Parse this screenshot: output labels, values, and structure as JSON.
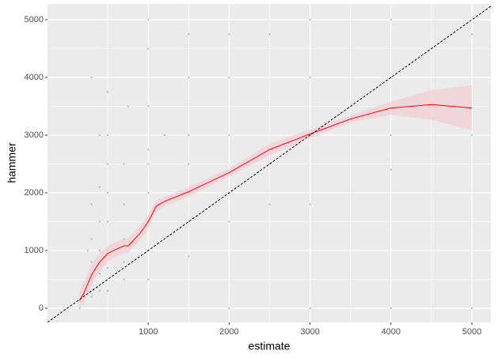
{
  "chart_data": {
    "type": "scatter",
    "x_label": "estimate",
    "y_label": "hammer",
    "xlim": [
      -245,
      5235
    ],
    "ylim": [
      -247,
      5274
    ],
    "xticks": [
      1000,
      2000,
      3000,
      4000,
      5000
    ],
    "yticks": [
      0,
      1000,
      2000,
      3000,
      4000,
      5000
    ],
    "x_minor_ticks": [
      500,
      1500,
      2500,
      3500,
      4500
    ],
    "y_minor_ticks": [
      500,
      1500,
      2500,
      3500,
      4500
    ],
    "grid": true,
    "point_color": "#a6a6a6",
    "points": {
      "x": [
        150,
        200,
        200,
        250,
        250,
        300,
        300,
        300,
        300,
        300,
        300,
        400,
        400,
        400,
        400,
        400,
        400,
        500,
        500,
        500,
        500,
        500,
        500,
        500,
        500,
        700,
        700,
        700,
        700,
        700,
        750,
        1000,
        1000,
        1000,
        1000,
        1000,
        1000,
        1000,
        1000,
        1000,
        1200,
        1500,
        1500,
        1500,
        1500,
        1500,
        1500,
        1500,
        2000,
        2000,
        2000,
        2000,
        2000,
        2000,
        2500,
        2500,
        2500,
        3000,
        3000,
        3000,
        3000,
        3000,
        4000,
        4000,
        4000,
        4000,
        4000,
        5000,
        5000,
        5000
      ],
      "y": [
        0,
        200,
        400,
        300,
        1000,
        200,
        500,
        800,
        1200,
        1800,
        4000,
        300,
        600,
        1000,
        1500,
        2100,
        3000,
        300,
        700,
        1000,
        1500,
        2000,
        2500,
        3000,
        3750,
        500,
        800,
        1200,
        1800,
        2500,
        3500,
        500,
        1000,
        1500,
        2000,
        2500,
        2750,
        3500,
        4500,
        5000,
        3000,
        900,
        1500,
        2000,
        2500,
        3000,
        4000,
        4750,
        0,
        1500,
        2000,
        3000,
        4000,
        4750,
        1800,
        2500,
        4750,
        0,
        1800,
        3000,
        4000,
        5000,
        0,
        2400,
        3000,
        4000,
        5000,
        0,
        3000,
        4750
      ]
    },
    "smooth": {
      "color": "#ff0000",
      "ribbon_color": "#f4c6d0",
      "x": [
        150,
        200,
        300,
        400,
        500,
        600,
        700,
        750,
        800,
        900,
        1000,
        1100,
        1200,
        1500,
        2000,
        2500,
        3000,
        3500,
        4000,
        4500,
        5000
      ],
      "y": [
        130,
        250,
        580,
        800,
        950,
        1020,
        1080,
        1080,
        1150,
        1300,
        1500,
        1770,
        1850,
        2020,
        2350,
        2750,
        3020,
        3280,
        3470,
        3530,
        3470
      ],
      "lower": [
        0,
        60,
        400,
        640,
        820,
        890,
        950,
        960,
        1030,
        1180,
        1380,
        1680,
        1770,
        1940,
        2280,
        2650,
        2950,
        3220,
        3350,
        3270,
        3080
      ],
      "upper": [
        300,
        440,
        760,
        960,
        1080,
        1150,
        1200,
        1210,
        1280,
        1430,
        1620,
        1860,
        1930,
        2100,
        2420,
        2850,
        3100,
        3340,
        3580,
        3780,
        3860
      ]
    },
    "reference_line": {
      "slope": 1,
      "intercept": 0
    }
  }
}
